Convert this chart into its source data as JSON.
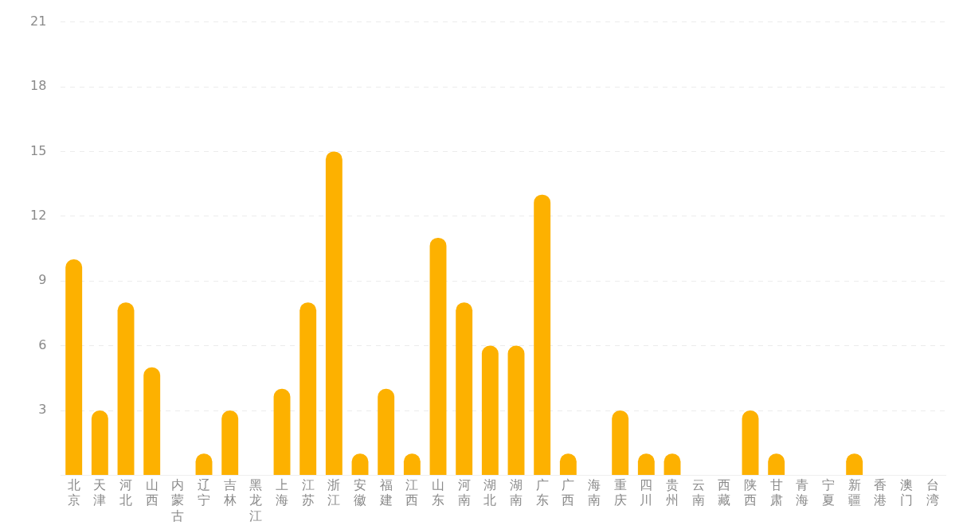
{
  "chart_data": {
    "type": "bar",
    "categories": [
      "北京",
      "天津",
      "河北",
      "山西",
      "内蒙古",
      "辽宁",
      "吉林",
      "黑龙江",
      "上海",
      "江苏",
      "浙江",
      "安徽",
      "福建",
      "江西",
      "山东",
      "河南",
      "湖北",
      "湖南",
      "广东",
      "广西",
      "海南",
      "重庆",
      "四川",
      "贵州",
      "云南",
      "西藏",
      "陕西",
      "甘肃",
      "青海",
      "宁夏",
      "新疆",
      "香港",
      "澳门",
      "台湾"
    ],
    "values": [
      10,
      3,
      8,
      5,
      0,
      1,
      3,
      0,
      4,
      8,
      15,
      1,
      4,
      1,
      11,
      8,
      6,
      6,
      13,
      1,
      0,
      3,
      1,
      1,
      0,
      0,
      3,
      1,
      0,
      0,
      1,
      0,
      0,
      0
    ],
    "color": "#fdb100",
    "ylim": [
      0,
      21
    ],
    "yticks": [
      {
        "value": 0,
        "label": null
      },
      3,
      6,
      9,
      12,
      15,
      18,
      21
    ],
    "grid": "y"
  }
}
